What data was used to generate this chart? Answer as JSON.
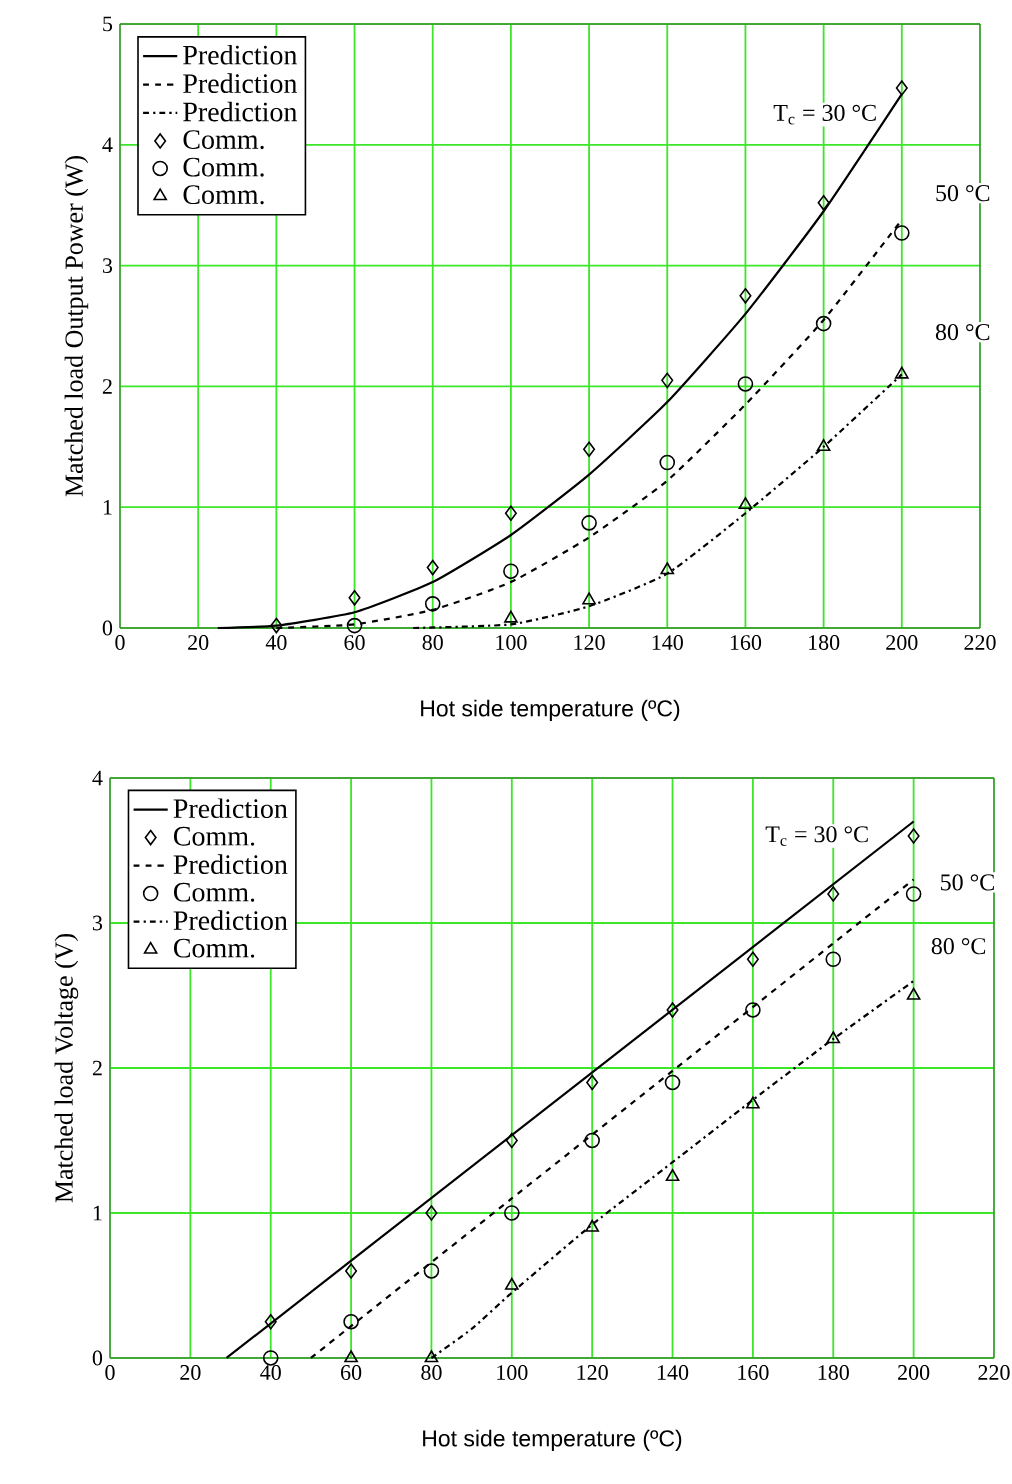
{
  "chart_data": [
    {
      "type": "line",
      "xlabel": "Hot side temperature (ºC)",
      "ylabel": "Matched load Output Power (W)",
      "xlim": [
        0,
        220
      ],
      "ylim": [
        0,
        5
      ],
      "xticks": [
        0,
        20,
        40,
        60,
        80,
        100,
        120,
        140,
        160,
        180,
        200,
        220
      ],
      "yticks": [
        0,
        1,
        2,
        3,
        4,
        5
      ],
      "grid": true,
      "legend": "top left",
      "series": [
        {
          "name": "Prediction",
          "color": "#000000",
          "line_style": "solid",
          "x": [
            25,
            40,
            60,
            80,
            100,
            120,
            140,
            160,
            180,
            200
          ],
          "values": [
            0,
            0.02,
            0.13,
            0.38,
            0.77,
            1.27,
            1.87,
            2.6,
            3.45,
            4.42
          ]
        },
        {
          "name": "Prediction",
          "color": "#000000",
          "line_style": "dashed",
          "x": [
            40,
            60,
            80,
            100,
            120,
            140,
            160,
            180,
            200
          ],
          "values": [
            0,
            0.03,
            0.15,
            0.38,
            0.75,
            1.22,
            1.85,
            2.55,
            3.38
          ]
        },
        {
          "name": "Prediction",
          "color": "#000000",
          "line_style": "dashdot",
          "x": [
            75,
            100,
            120,
            140,
            160,
            180,
            200
          ],
          "values": [
            0,
            0.03,
            0.18,
            0.45,
            0.95,
            1.5,
            2.1
          ]
        },
        {
          "name": "Comm.",
          "type": "scatter",
          "color": "#000000",
          "marker": "diamond",
          "x": [
            40,
            60,
            80,
            100,
            120,
            140,
            160,
            180,
            200
          ],
          "values": [
            0.02,
            0.25,
            0.5,
            0.95,
            1.48,
            2.05,
            2.75,
            3.52,
            4.47
          ]
        },
        {
          "name": "Comm.",
          "type": "scatter",
          "color": "#000000",
          "marker": "circle",
          "x": [
            60,
            80,
            100,
            120,
            140,
            160,
            180,
            200
          ],
          "values": [
            0.02,
            0.2,
            0.47,
            0.87,
            1.37,
            2.02,
            2.52,
            3.27
          ]
        },
        {
          "name": "Comm.",
          "type": "scatter",
          "color": "#000000",
          "marker": "triangle",
          "x": [
            100,
            120,
            140,
            160,
            180,
            200
          ],
          "values": [
            0.08,
            0.23,
            0.48,
            1.02,
            1.5,
            2.1
          ]
        }
      ],
      "annotations": [
        "T$_{c}$ = 30 °C",
        "50 °C",
        "80 °C"
      ]
    },
    {
      "type": "line",
      "xlabel": "Hot side temperature (ºC)",
      "ylabel": "Matched load Voltage (V)",
      "xlim": [
        0,
        220
      ],
      "ylim": [
        0,
        4
      ],
      "xticks": [
        0,
        20,
        40,
        60,
        80,
        100,
        120,
        140,
        160,
        180,
        200,
        220
      ],
      "yticks": [
        0,
        1,
        2,
        3,
        4
      ],
      "grid": true,
      "legend": "top left",
      "series": [
        {
          "name": "Prediction",
          "color": "#000000",
          "line_style": "solid",
          "x": [
            29,
            200
          ],
          "values": [
            0,
            3.7
          ]
        },
        {
          "name": "Comm.",
          "type": "scatter",
          "color": "#000000",
          "marker": "diamond",
          "x": [
            40,
            60,
            80,
            100,
            120,
            140,
            160,
            180,
            200
          ],
          "values": [
            0.25,
            0.6,
            1.0,
            1.5,
            1.9,
            2.4,
            2.75,
            3.2,
            3.6
          ]
        },
        {
          "name": "Prediction",
          "color": "#000000",
          "line_style": "dashed",
          "x": [
            50,
            60,
            100,
            140,
            200
          ],
          "values": [
            0,
            0.22,
            1.1,
            1.98,
            3.3
          ]
        },
        {
          "name": "Comm.",
          "type": "scatter",
          "color": "#000000",
          "marker": "circle",
          "x": [
            40,
            60,
            80,
            100,
            120,
            140,
            160,
            180,
            200
          ],
          "values": [
            0,
            0.25,
            0.6,
            1.0,
            1.5,
            1.9,
            2.4,
            2.75,
            3.2
          ]
        },
        {
          "name": "Prediction",
          "color": "#000000",
          "line_style": "dashdot",
          "x": [
            80,
            90,
            100,
            120,
            140,
            160,
            180,
            200
          ],
          "values": [
            0,
            0.2,
            0.45,
            0.92,
            1.35,
            1.78,
            2.2,
            2.6
          ]
        },
        {
          "name": "Comm.",
          "type": "scatter",
          "color": "#000000",
          "marker": "triangle",
          "x": [
            60,
            80,
            100,
            120,
            140,
            160,
            180,
            200
          ],
          "values": [
            0,
            0,
            0.5,
            0.9,
            1.25,
            1.75,
            2.2,
            2.5
          ]
        }
      ],
      "annotations": [
        "T$_{c}$ = 30 °C",
        "50 °C",
        "80 °C"
      ]
    }
  ]
}
